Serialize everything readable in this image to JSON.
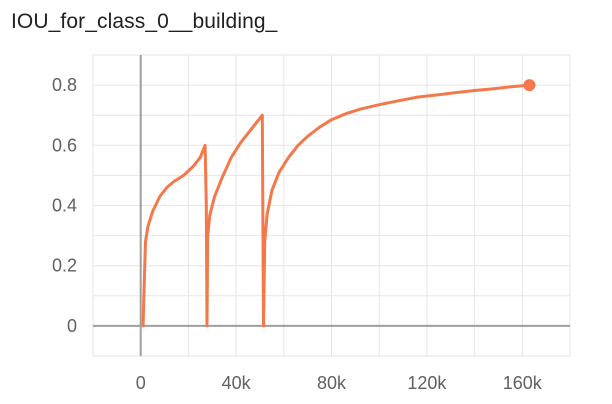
{
  "title": "IOU_for_class_0__building_",
  "chart_data": {
    "type": "line",
    "title": "IOU_for_class_0__building_",
    "xlabel": "",
    "ylabel": "",
    "x_ticks": [
      {
        "value": 0,
        "label": "0"
      },
      {
        "value": 40000,
        "label": "40k"
      },
      {
        "value": 80000,
        "label": "80k"
      },
      {
        "value": 120000,
        "label": "120k"
      },
      {
        "value": 160000,
        "label": "160k"
      }
    ],
    "y_ticks": [
      {
        "value": 0,
        "label": "0"
      },
      {
        "value": 0.2,
        "label": "0.2"
      },
      {
        "value": 0.4,
        "label": "0.4"
      },
      {
        "value": 0.6,
        "label": "0.6"
      },
      {
        "value": 0.8,
        "label": "0.8"
      }
    ],
    "xlim": [
      -20000,
      180000
    ],
    "ylim": [
      -0.1,
      0.9
    ],
    "grid": true,
    "series": [
      {
        "color": "#f4784a",
        "points": [
          [
            1000,
            0
          ],
          [
            1500,
            0.15
          ],
          [
            2000,
            0.28
          ],
          [
            3000,
            0.33
          ],
          [
            5000,
            0.38
          ],
          [
            8000,
            0.43
          ],
          [
            11000,
            0.46
          ],
          [
            14000,
            0.48
          ],
          [
            18000,
            0.5
          ],
          [
            22000,
            0.53
          ],
          [
            25000,
            0.56
          ],
          [
            26500,
            0.59
          ],
          [
            27000,
            0.6
          ],
          [
            27500,
            0.4
          ],
          [
            27800,
            0.0
          ],
          [
            28100,
            0.3
          ],
          [
            29000,
            0.37
          ],
          [
            31000,
            0.43
          ],
          [
            34000,
            0.49
          ],
          [
            38000,
            0.56
          ],
          [
            42000,
            0.61
          ],
          [
            46000,
            0.65
          ],
          [
            50000,
            0.69
          ],
          [
            51000,
            0.7
          ],
          [
            51500,
            0.0
          ],
          [
            52000,
            0.28
          ],
          [
            53000,
            0.37
          ],
          [
            55000,
            0.45
          ],
          [
            58000,
            0.51
          ],
          [
            62000,
            0.56
          ],
          [
            66000,
            0.6
          ],
          [
            70000,
            0.63
          ],
          [
            75000,
            0.66
          ],
          [
            80000,
            0.685
          ],
          [
            86000,
            0.705
          ],
          [
            92000,
            0.72
          ],
          [
            100000,
            0.735
          ],
          [
            108000,
            0.748
          ],
          [
            116000,
            0.76
          ],
          [
            124000,
            0.767
          ],
          [
            132000,
            0.775
          ],
          [
            140000,
            0.782
          ],
          [
            148000,
            0.788
          ],
          [
            156000,
            0.795
          ],
          [
            163000,
            0.8
          ]
        ]
      }
    ]
  }
}
